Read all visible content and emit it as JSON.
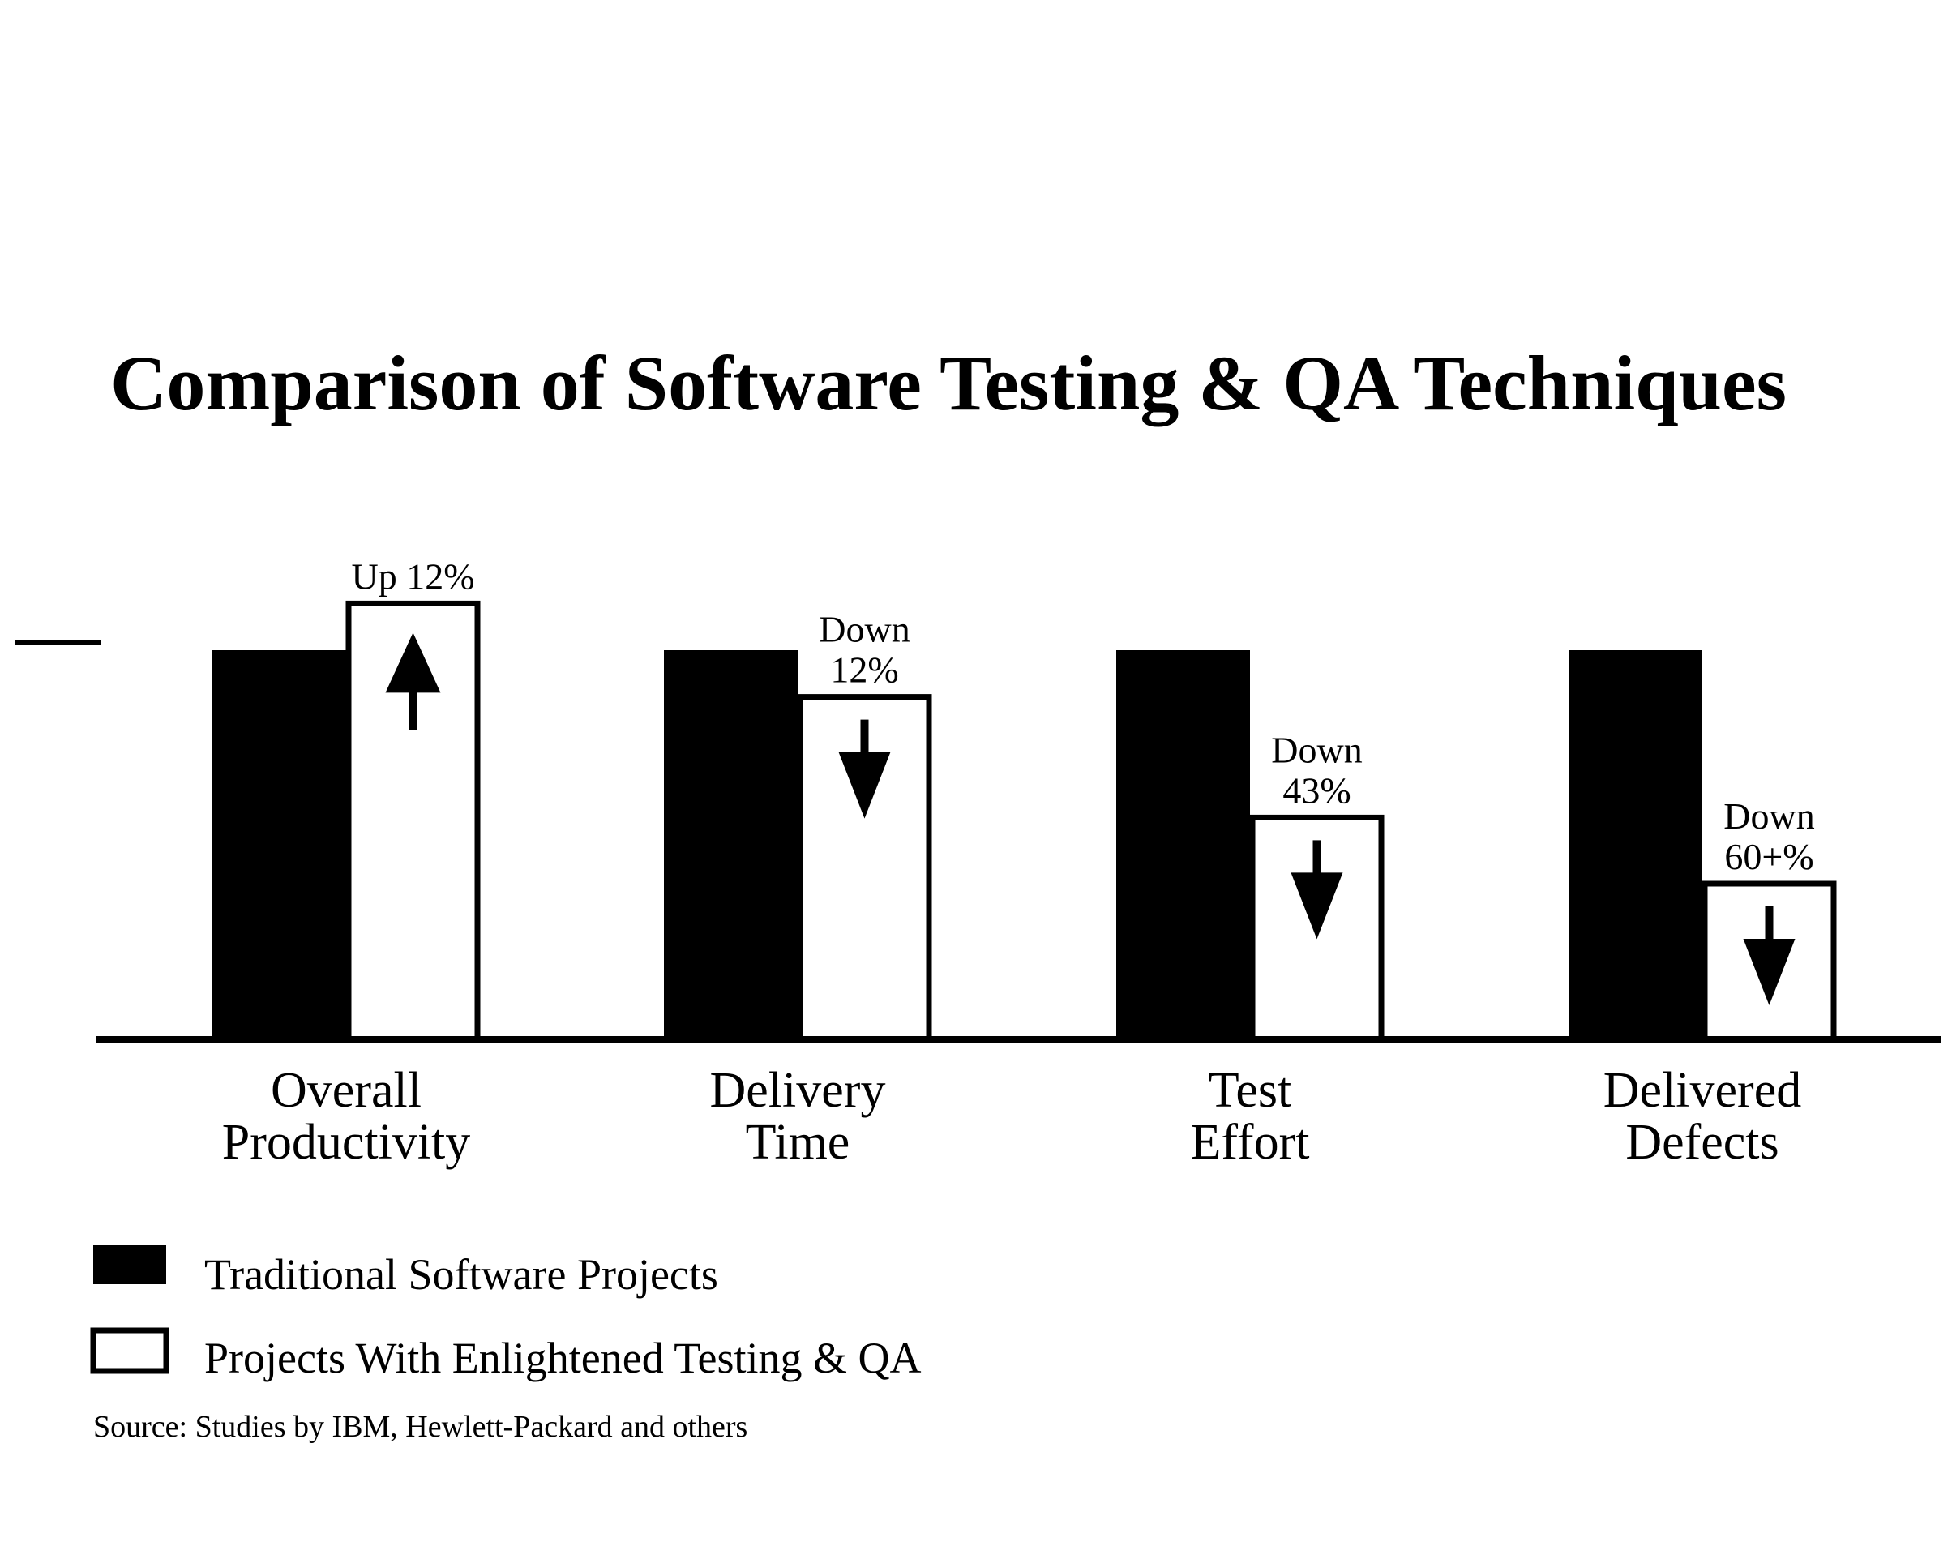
{
  "chart_data": {
    "type": "bar",
    "title": "Comparison of Software Testing & QA Techniques",
    "categories": [
      [
        "Overall",
        "Productivity"
      ],
      [
        "Delivery",
        "Time"
      ],
      [
        "Test",
        "Effort"
      ],
      [
        "Delivered",
        "Defects"
      ]
    ],
    "series": [
      {
        "name": "Traditional Software Projects",
        "fill": "#000000",
        "values": [
          100,
          100,
          100,
          100
        ]
      },
      {
        "name": "Projects With Enlightened Testing & QA",
        "fill": "#ffffff",
        "values": [
          112,
          88,
          57,
          40
        ]
      }
    ],
    "annotations": [
      {
        "lines": [
          "Up 12%"
        ],
        "direction": "up"
      },
      {
        "lines": [
          "Down",
          "12%"
        ],
        "direction": "down"
      },
      {
        "lines": [
          "Down",
          "43%"
        ],
        "direction": "down"
      },
      {
        "lines": [
          "Down",
          "60+%"
        ],
        "direction": "down"
      }
    ],
    "ylim": [
      0,
      130
    ],
    "grid": false,
    "legend_position": "bottom-left",
    "source": "Source: Studies by IBM, Hewlett-Packard and others"
  }
}
